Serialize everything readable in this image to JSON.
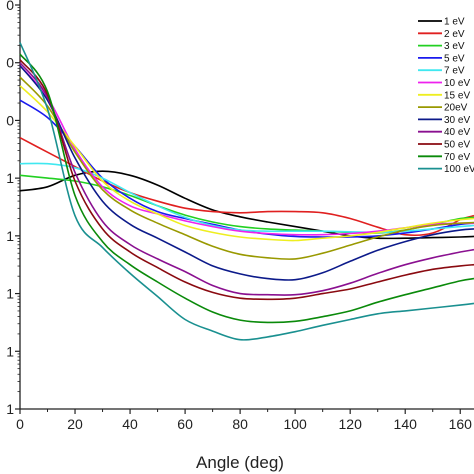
{
  "chart_data": {
    "type": "line",
    "xlabel": "Angle (deg)",
    "ylabel": "",
    "xlim": [
      0,
      165
    ],
    "ylim": [
      -3,
      4
    ],
    "yscale": "log",
    "grid": false,
    "legend_position": "top-right",
    "x_tick_labels": [
      "0",
      "20",
      "40",
      "60",
      "80",
      "100",
      "120",
      "140",
      "160"
    ],
    "y_tick_labels": [
      "0",
      "0",
      "0",
      "1",
      "1",
      "1"
    ],
    "series": [
      {
        "name": "1 eV",
        "color": "#000000",
        "x": [
          0,
          10,
          20,
          30,
          40,
          50,
          60,
          70,
          80,
          90,
          100,
          110,
          120,
          130,
          140,
          150,
          160,
          165
        ],
        "y": [
          0.78,
          0.85,
          1.05,
          1.12,
          1.05,
          0.88,
          0.65,
          0.45,
          0.33,
          0.24,
          0.16,
          0.08,
          0.0,
          -0.04,
          -0.04,
          -0.03,
          -0.02,
          -0.01
        ]
      },
      {
        "name": "2 eV",
        "color": "#e02020",
        "x": [
          0,
          10,
          20,
          30,
          40,
          50,
          60,
          70,
          80,
          90,
          100,
          110,
          120,
          130,
          140,
          150,
          160,
          165
        ],
        "y": [
          1.7,
          1.45,
          1.2,
          0.95,
          0.75,
          0.6,
          0.48,
          0.42,
          0.4,
          0.42,
          0.42,
          0.4,
          0.3,
          0.15,
          0.02,
          0.05,
          0.28,
          0.35
        ]
      },
      {
        "name": "3 eV",
        "color": "#22d022",
        "x": [
          0,
          10,
          20,
          30,
          40,
          50,
          60,
          70,
          80,
          90,
          100,
          110,
          120,
          130,
          140,
          150,
          160,
          165
        ],
        "y": [
          1.05,
          1.0,
          0.95,
          0.85,
          0.7,
          0.52,
          0.36,
          0.24,
          0.16,
          0.12,
          0.1,
          0.08,
          0.06,
          0.05,
          0.1,
          0.2,
          0.3,
          0.32
        ]
      },
      {
        "name": "5 eV",
        "color": "#1a1aee",
        "x": [
          0,
          10,
          20,
          30,
          40,
          50,
          60,
          70,
          80,
          90,
          100,
          110,
          120,
          130,
          140,
          150,
          160,
          165
        ],
        "y": [
          2.35,
          2.05,
          1.55,
          1.0,
          0.65,
          0.42,
          0.3,
          0.2,
          0.1,
          0.03,
          -0.01,
          -0.02,
          -0.02,
          0.0,
          0.05,
          0.12,
          0.2,
          0.22
        ]
      },
      {
        "name": "7 eV",
        "color": "#40e8f0",
        "x": [
          0,
          10,
          20,
          30,
          40,
          50,
          60,
          70,
          80,
          90,
          100,
          110,
          120,
          130,
          140,
          150,
          160,
          165
        ],
        "y": [
          1.25,
          1.25,
          1.18,
          1.0,
          0.75,
          0.52,
          0.32,
          0.18,
          0.1,
          0.08,
          0.08,
          0.08,
          0.07,
          0.06,
          0.08,
          0.12,
          0.16,
          0.18
        ]
      },
      {
        "name": "10 eV",
        "color": "#ee22ee",
        "x": [
          0,
          10,
          20,
          30,
          40,
          50,
          60,
          70,
          80,
          90,
          100,
          110,
          120,
          130,
          140,
          150,
          160,
          165
        ],
        "y": [
          2.95,
          2.4,
          1.5,
          0.85,
          0.52,
          0.38,
          0.26,
          0.16,
          0.08,
          0.04,
          0.02,
          0.02,
          0.04,
          0.08,
          0.14,
          0.2,
          0.22,
          0.22
        ]
      },
      {
        "name": "15 eV",
        "color": "#eeee20",
        "x": [
          0,
          10,
          20,
          30,
          40,
          50,
          60,
          70,
          80,
          90,
          100,
          110,
          120,
          130,
          140,
          150,
          160,
          165
        ],
        "y": [
          2.6,
          2.15,
          1.55,
          0.95,
          0.6,
          0.38,
          0.18,
          0.06,
          -0.02,
          -0.06,
          -0.08,
          -0.04,
          0.0,
          0.06,
          0.14,
          0.22,
          0.28,
          0.3
        ]
      },
      {
        "name": "20eV",
        "color": "#999900",
        "x": [
          0,
          10,
          20,
          30,
          40,
          50,
          60,
          70,
          80,
          90,
          100,
          110,
          120,
          130,
          140,
          150,
          160,
          165
        ],
        "y": [
          2.75,
          2.25,
          1.45,
          0.8,
          0.45,
          0.22,
          0.02,
          -0.18,
          -0.32,
          -0.38,
          -0.4,
          -0.3,
          -0.16,
          -0.02,
          0.1,
          0.18,
          0.22,
          0.23
        ]
      },
      {
        "name": "30 eV",
        "color": "#0c1a8a",
        "x": [
          0,
          10,
          20,
          30,
          40,
          50,
          60,
          70,
          80,
          90,
          100,
          110,
          120,
          130,
          140,
          150,
          160,
          165
        ],
        "y": [
          2.95,
          2.35,
          1.35,
          0.6,
          0.2,
          -0.04,
          -0.28,
          -0.52,
          -0.66,
          -0.74,
          -0.76,
          -0.64,
          -0.44,
          -0.25,
          -0.1,
          0.02,
          0.1,
          0.12
        ]
      },
      {
        "name": "40 eV",
        "color": "#8a1090",
        "x": [
          0,
          10,
          20,
          30,
          40,
          50,
          60,
          70,
          80,
          90,
          100,
          110,
          120,
          130,
          140,
          150,
          160,
          165
        ],
        "y": [
          3.0,
          2.4,
          1.1,
          0.25,
          -0.15,
          -0.4,
          -0.62,
          -0.86,
          -1.0,
          -1.02,
          -1.02,
          -0.95,
          -0.82,
          -0.65,
          -0.5,
          -0.38,
          -0.28,
          -0.24
        ]
      },
      {
        "name": "50 eV",
        "color": "#8a0a10",
        "x": [
          0,
          10,
          20,
          30,
          40,
          50,
          60,
          70,
          80,
          90,
          100,
          110,
          120,
          130,
          140,
          150,
          160,
          165
        ],
        "y": [
          3.05,
          2.45,
          0.95,
          0.12,
          -0.28,
          -0.55,
          -0.8,
          -0.98,
          -1.08,
          -1.1,
          -1.08,
          -1.0,
          -0.92,
          -0.8,
          -0.68,
          -0.58,
          -0.52,
          -0.5
        ]
      },
      {
        "name": "70 eV",
        "color": "#0a8a0a",
        "x": [
          0,
          10,
          20,
          30,
          40,
          50,
          60,
          70,
          80,
          90,
          100,
          110,
          120,
          130,
          140,
          150,
          160,
          165
        ],
        "y": [
          3.15,
          2.5,
          0.7,
          -0.1,
          -0.5,
          -0.8,
          -1.08,
          -1.32,
          -1.46,
          -1.5,
          -1.48,
          -1.4,
          -1.3,
          -1.15,
          -1.02,
          -0.9,
          -0.78,
          -0.74
        ]
      },
      {
        "name": "100 eV",
        "color": "#1a9090",
        "x": [
          0,
          10,
          20,
          30,
          40,
          50,
          60,
          70,
          80,
          90,
          100,
          110,
          120,
          130,
          140,
          150,
          160,
          165
        ],
        "y": [
          3.35,
          2.2,
          0.35,
          -0.2,
          -0.65,
          -1.05,
          -1.45,
          -1.65,
          -1.8,
          -1.75,
          -1.66,
          -1.55,
          -1.45,
          -1.35,
          -1.3,
          -1.25,
          -1.2,
          -1.17
        ]
      }
    ]
  }
}
